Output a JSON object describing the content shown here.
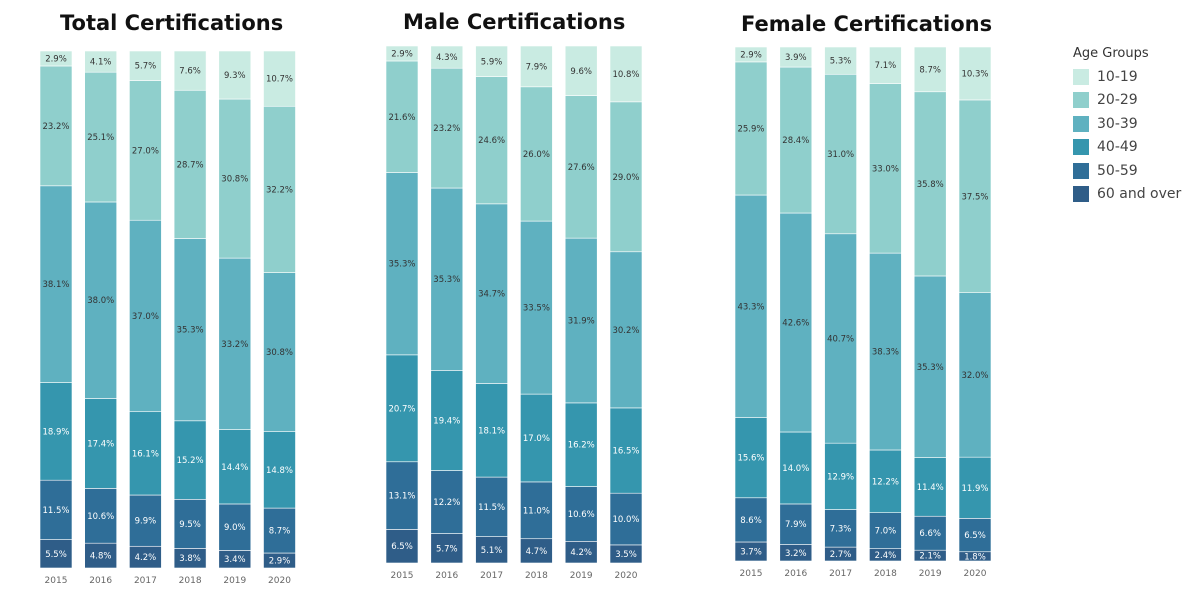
{
  "colors": {
    "10-19": "#c9ebe2",
    "20-29": "#8fcfcc",
    "30-39": "#5fb1c0",
    "40-49": "#3596ae",
    "50-59": "#2f6e98",
    "60 and over": "#2f5d88"
  },
  "legend": {
    "title": "Age Groups",
    "items": [
      "10-19",
      "20-29",
      "30-39",
      "40-49",
      "50-59",
      "60 and over"
    ]
  },
  "chart_data": [
    {
      "type": "bar",
      "stacked": "percent",
      "title": "Total Certifications",
      "categories": [
        "2015",
        "2016",
        "2017",
        "2018",
        "2019",
        "2020"
      ],
      "series": [
        {
          "name": "60 and over",
          "values": [
            5.5,
            4.8,
            4.2,
            3.8,
            3.4,
            2.9
          ]
        },
        {
          "name": "50-59",
          "values": [
            11.5,
            10.6,
            9.9,
            9.5,
            9.0,
            8.7
          ]
        },
        {
          "name": "40-49",
          "values": [
            18.9,
            17.4,
            16.1,
            15.2,
            14.4,
            14.8
          ]
        },
        {
          "name": "30-39",
          "values": [
            38.1,
            38.0,
            37.0,
            35.3,
            33.2,
            30.8
          ]
        },
        {
          "name": "20-29",
          "values": [
            23.2,
            25.1,
            27.0,
            28.7,
            30.8,
            32.2
          ]
        },
        {
          "name": "10-19",
          "values": [
            2.9,
            4.1,
            5.7,
            7.6,
            9.3,
            10.7
          ]
        }
      ]
    },
    {
      "type": "bar",
      "stacked": "percent",
      "title": "Male Certifications",
      "categories": [
        "2015",
        "2016",
        "2017",
        "2018",
        "2019",
        "2020"
      ],
      "series": [
        {
          "name": "60 and over",
          "values": [
            6.5,
            5.7,
            5.1,
            4.7,
            4.2,
            3.5
          ]
        },
        {
          "name": "50-59",
          "values": [
            13.1,
            12.2,
            11.5,
            11.0,
            10.6,
            10.0
          ]
        },
        {
          "name": "40-49",
          "values": [
            20.7,
            19.4,
            18.1,
            17.0,
            16.2,
            16.5
          ]
        },
        {
          "name": "30-39",
          "values": [
            35.3,
            35.3,
            34.7,
            33.5,
            31.9,
            30.2
          ]
        },
        {
          "name": "20-29",
          "values": [
            21.6,
            23.2,
            24.6,
            26.0,
            27.6,
            29.0
          ]
        },
        {
          "name": "10-19",
          "values": [
            2.9,
            4.3,
            5.9,
            7.9,
            9.6,
            10.8
          ]
        }
      ]
    },
    {
      "type": "bar",
      "stacked": "percent",
      "title": "Female Certifications",
      "categories": [
        "2015",
        "2016",
        "2017",
        "2018",
        "2019",
        "2020"
      ],
      "series": [
        {
          "name": "60 and over",
          "values": [
            3.7,
            3.2,
            2.7,
            2.4,
            2.1,
            1.8
          ]
        },
        {
          "name": "50-59",
          "values": [
            8.6,
            7.9,
            7.3,
            7.0,
            6.6,
            6.5
          ]
        },
        {
          "name": "40-49",
          "values": [
            15.6,
            14.0,
            12.9,
            12.2,
            11.4,
            11.9
          ]
        },
        {
          "name": "30-39",
          "values": [
            43.3,
            42.6,
            40.7,
            38.3,
            35.3,
            32.0
          ]
        },
        {
          "name": "20-29",
          "values": [
            25.9,
            28.4,
            31.0,
            33.0,
            35.8,
            37.5
          ]
        },
        {
          "name": "10-19",
          "values": [
            2.9,
            3.9,
            5.3,
            7.1,
            8.7,
            10.3
          ]
        }
      ]
    }
  ]
}
